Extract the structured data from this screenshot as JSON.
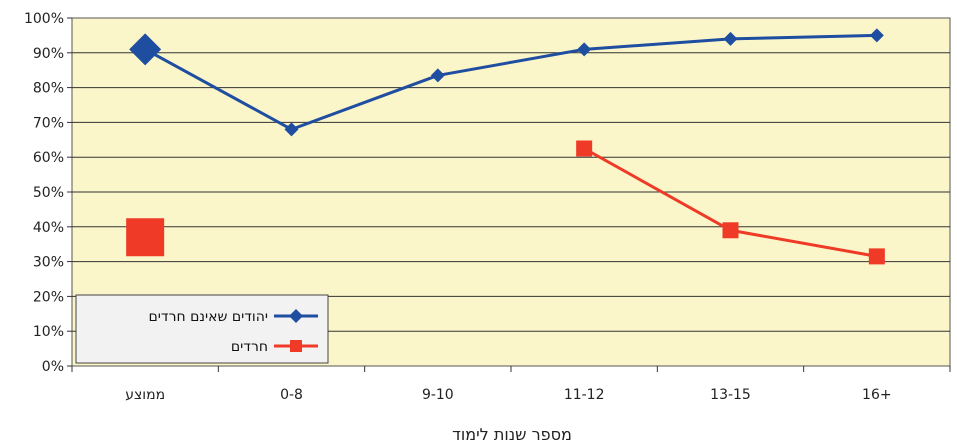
{
  "chart_data": {
    "type": "line",
    "title": "",
    "xlabel": "מספר שנות לימוד",
    "ylabel": "",
    "categories": [
      "ממוצע",
      "0-8",
      "9-10",
      "11-12",
      "13-15",
      "16+"
    ],
    "y_ticks": [
      "0%",
      "10%",
      "20%",
      "30%",
      "40%",
      "50%",
      "60%",
      "70%",
      "80%",
      "90%",
      "100%"
    ],
    "ylim": [
      0,
      100
    ],
    "grid": true,
    "legend_position": "bottom-left",
    "series": [
      {
        "name": "יהודים שאינם חרדים",
        "color": "#1f4ea1",
        "marker": "diamond",
        "values": [
          91,
          68,
          83.5,
          91,
          94,
          95
        ],
        "connected_from": 0
      },
      {
        "name": "חרדים",
        "color": "#ef3a27",
        "marker": "square",
        "values": [
          37,
          null,
          null,
          62.5,
          39,
          31.5
        ],
        "connected_from": 3
      }
    ],
    "plot_background": "#fbf6c9"
  }
}
